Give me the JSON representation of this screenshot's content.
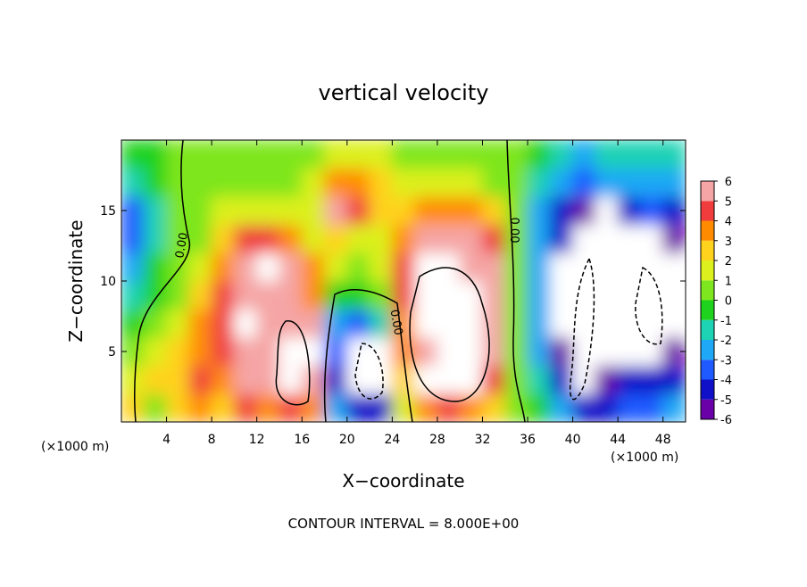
{
  "chart_data": {
    "type": "contour",
    "title": "vertical velocity",
    "x_label": "X−coordinate",
    "y_label": "Z−coordinate",
    "unit_label": "(×1000 m)",
    "footer": "CONTOUR INTERVAL = 8.000E+00",
    "x": [
      1,
      3,
      5,
      7,
      9,
      11,
      13,
      15,
      17,
      19,
      21,
      23,
      25,
      27,
      29,
      31,
      33,
      35,
      37,
      39,
      41,
      43,
      45,
      47,
      49
    ],
    "y": [
      1,
      3,
      5,
      7,
      9,
      11,
      13,
      15,
      17,
      19
    ],
    "z": [
      [
        2,
        0,
        2,
        3,
        2,
        4,
        3,
        4,
        3,
        -3,
        -5,
        -5,
        1,
        3,
        4,
        3,
        2,
        0,
        -1,
        -3,
        -5,
        -5,
        -4,
        -4,
        -3
      ],
      [
        1,
        2,
        2,
        4,
        3,
        6,
        6,
        9,
        6,
        -5,
        -8,
        -8,
        2,
        7,
        9,
        8,
        4,
        0,
        -2,
        -5,
        -8,
        -6,
        -5,
        -5,
        -5
      ],
      [
        0,
        1,
        2,
        3,
        4,
        6,
        6,
        8,
        7,
        -4,
        -7,
        -7,
        3,
        6,
        9,
        8,
        5,
        0,
        -3,
        -6,
        -9,
        -7,
        -7,
        -7,
        -6
      ],
      [
        -1,
        0,
        1,
        3,
        4,
        7,
        5,
        5,
        5,
        -3,
        -4,
        -2,
        3,
        7,
        8,
        8,
        5,
        0,
        -3,
        -7,
        -8,
        -8,
        -8,
        -8,
        -7
      ],
      [
        -2,
        -1,
        0.5,
        2,
        4,
        6,
        6,
        5,
        3,
        -1,
        -1,
        0,
        4,
        7,
        8,
        7,
        5,
        0,
        -3,
        -7,
        -8,
        -9,
        -8,
        -8,
        -7
      ],
      [
        -3,
        -1,
        0,
        1,
        3,
        5,
        7,
        5,
        3,
        1,
        0.5,
        1,
        4,
        7,
        7,
        6,
        5,
        0,
        -3,
        -7,
        -9,
        -8,
        -8,
        -8,
        -7
      ],
      [
        -4,
        -2,
        0,
        0.5,
        2,
        4,
        4,
        3,
        1,
        2,
        1.5,
        1.5,
        3,
        5,
        5,
        5,
        4,
        0,
        -3,
        -5,
        -7,
        -8,
        -7,
        -6.5,
        -6
      ],
      [
        -4,
        -2,
        0,
        0.5,
        1,
        1.5,
        1.5,
        1,
        1.5,
        5,
        4,
        2,
        2,
        3,
        3,
        3,
        2,
        0,
        -3,
        -4.5,
        -6,
        -7,
        -5,
        -4,
        -5
      ],
      [
        -2,
        -1,
        0.5,
        0.5,
        0.5,
        0.5,
        0.5,
        0.5,
        1,
        3,
        3,
        2,
        1,
        1,
        1,
        1,
        0.5,
        0,
        -2,
        -3,
        -4,
        -3,
        -3,
        -3,
        -3
      ],
      [
        -1,
        -0.5,
        0.5,
        0.5,
        0.5,
        0.5,
        0.5,
        0.5,
        0.5,
        1,
        1,
        1,
        0.5,
        0.5,
        0.5,
        0.5,
        0.5,
        0,
        -1,
        -2,
        -2.5,
        -2,
        -2,
        -2,
        -2
      ]
    ],
    "xlim": [
      0,
      50
    ],
    "ylim": [
      0,
      20
    ],
    "xticks": [
      4,
      8,
      12,
      16,
      20,
      24,
      28,
      32,
      36,
      40,
      44,
      48
    ],
    "yticks": [
      5,
      10,
      15
    ],
    "colorbar_ticks": [
      -6,
      -5,
      -4,
      -3,
      -2,
      -1,
      0,
      1,
      2,
      3,
      4,
      5,
      6
    ],
    "colorbar_colors": [
      "#6a00a8",
      "#1010c8",
      "#1e5aff",
      "#1ea8f5",
      "#1ed2b4",
      "#1ed21e",
      "#7ee61e",
      "#dcf01e",
      "#ffd21e",
      "#ff8c00",
      "#f03c3c",
      "#f5a5a5"
    ],
    "over_color": "#ffffff",
    "contour_labels": [
      "0.00",
      "0.00",
      "0.00"
    ]
  }
}
